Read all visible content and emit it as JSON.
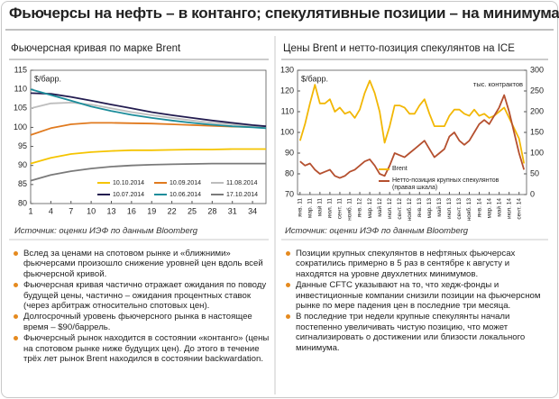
{
  "title": "Фьючерсы на нефть – в контанго; спекулятивные позиции – на минимумах",
  "chart_data": [
    {
      "type": "line",
      "title": "Фьючерсная кривая по марке Brent",
      "y_label": "$/барр.",
      "x": [
        1,
        4,
        7,
        10,
        13,
        16,
        19,
        22,
        25,
        28,
        31,
        34,
        36
      ],
      "xlim": [
        1,
        36
      ],
      "xticks": [
        1,
        4,
        7,
        10,
        13,
        16,
        19,
        22,
        25,
        28,
        31,
        34
      ],
      "ylim": [
        80,
        115
      ],
      "yticks": [
        80,
        85,
        90,
        95,
        100,
        105,
        110,
        115
      ],
      "legend": "bottom",
      "series": [
        {
          "name": "10.10.2014",
          "color": "#f5c400",
          "values": [
            90.5,
            92,
            93,
            93.5,
            93.8,
            94,
            94,
            94.1,
            94.2,
            94.2,
            94.3,
            94.3,
            94.3
          ]
        },
        {
          "name": "10.09.2014",
          "color": "#e07a1f",
          "values": [
            98,
            99.8,
            100.8,
            101.2,
            101.2,
            101.1,
            101,
            100.8,
            100.6,
            100.4,
            100.2,
            100.1,
            100
          ]
        },
        {
          "name": "11.08.2014",
          "color": "#bdbdbd",
          "values": [
            105,
            106.3,
            106.5,
            106,
            105,
            104,
            103.2,
            102.5,
            101.8,
            101.2,
            100.8,
            100.4,
            100.2
          ]
        },
        {
          "name": "10.07.2014",
          "color": "#231c50",
          "values": [
            109,
            108.8,
            108,
            107,
            106,
            105,
            104,
            103.2,
            102.5,
            101.8,
            101.2,
            100.6,
            100.3
          ]
        },
        {
          "name": "10.06.2014",
          "color": "#1b8c9a",
          "values": [
            110,
            108.5,
            107,
            105.5,
            104.3,
            103.3,
            102.5,
            101.8,
            101.2,
            100.7,
            100.3,
            100,
            99.8
          ]
        },
        {
          "name": "17.10.2014",
          "color": "#7a7a7a",
          "values": [
            86,
            87.5,
            88.5,
            89.2,
            89.7,
            90,
            90.2,
            90.3,
            90.4,
            90.5,
            90.5,
            90.5,
            90.5
          ]
        }
      ],
      "source": "Источник: оценки ИЭФ по данным Bloomberg",
      "bullets": [
        "Вслед за ценами на спотовом рынке и «ближними» фьючерсами произошло снижение уровней цен вдоль всей фьючерсной кривой.",
        "Фьючерсная кривая частично отражает ожидания по поводу будущей цены, частично – ожидания процентных ставок (через арбитраж относительно спотовых цен).",
        "Долгосрочный уровень фьючерсного рынка в настоящее время – $90/баррель.",
        "Фьючерсный рынок находится в состоянии «контанго» (цены на спотовом рынке ниже будущих цен). До этого в течение трёх лет рынок Brent находился в состоянии backwardation."
      ]
    },
    {
      "type": "line",
      "title": "Цены Brent и нетто-позиция спекулянтов на ICE",
      "y_label": "$/барр.",
      "y2_label": "тыс. контрактов",
      "categories": [
        "янв. 11",
        null,
        "мар. 11",
        null,
        "май 11",
        null,
        "июл. 11",
        null,
        "сент. 11",
        null,
        "нояб. 11",
        null,
        "янв. 12",
        null,
        "мар. 12",
        null,
        "май 12",
        null,
        "июл. 12",
        null,
        "сент. 12",
        null,
        "нояб. 12",
        null,
        "янв. 13",
        null,
        "мар. 13",
        null,
        "май 13",
        null,
        "июл. 13",
        null,
        "сент. 13",
        null,
        "нояб. 13",
        null,
        "янв. 14",
        null,
        "мар. 14",
        null,
        "май 14",
        null,
        "июл. 14",
        null,
        "сент. 14",
        null
      ],
      "ylim": [
        70,
        130
      ],
      "yticks": [
        70,
        80,
        90,
        100,
        110,
        120,
        130
      ],
      "y2lim": [
        0,
        300
      ],
      "y2ticks": [
        0,
        50,
        100,
        150,
        200,
        250,
        300
      ],
      "legend": "bottom-left",
      "series": [
        {
          "name": "Brent",
          "color": "#f2b705",
          "values": [
            96,
            104,
            114,
            123,
            114,
            114,
            116,
            110,
            112,
            109,
            110,
            107,
            111,
            119,
            125,
            119,
            110,
            95,
            103,
            113,
            113,
            112,
            109,
            109,
            113,
            116,
            109,
            103,
            103,
            103,
            108,
            111,
            111,
            109,
            108,
            111,
            108,
            109,
            107,
            108,
            110,
            112,
            107,
            102,
            97,
            85
          ]
        },
        {
          "name": "Нетто-позиция крупных спекулянтов (правая шкала)",
          "color": "#b5502f",
          "axis": "y2",
          "values": [
            80,
            70,
            75,
            60,
            50,
            55,
            60,
            45,
            40,
            45,
            55,
            60,
            70,
            80,
            85,
            70,
            50,
            45,
            70,
            100,
            95,
            90,
            100,
            110,
            120,
            130,
            110,
            90,
            100,
            110,
            140,
            150,
            130,
            120,
            130,
            150,
            170,
            180,
            170,
            190,
            210,
            240,
            200,
            150,
            100,
            60
          ]
        }
      ],
      "source": "Источник: оценки ИЭФ по данным Bloomberg",
      "bullets": [
        "Позиции крупных спекулянтов в нефтяных фьючерсах сократились примерно в 5 раз в сентябре к августу и находятся на уровне двухлетних минимумов.",
        "Данные CFTC указывают на то, что хедж-фонды и инвестиционные компании снизили позиции на фьючерсном рынке по мере падения цен в последние три месяца.",
        "В последние три недели крупные спекулянты начали постепенно увеличивать чистую позицию, что может сигнализировать о достижении или близости локального минимума."
      ]
    }
  ]
}
